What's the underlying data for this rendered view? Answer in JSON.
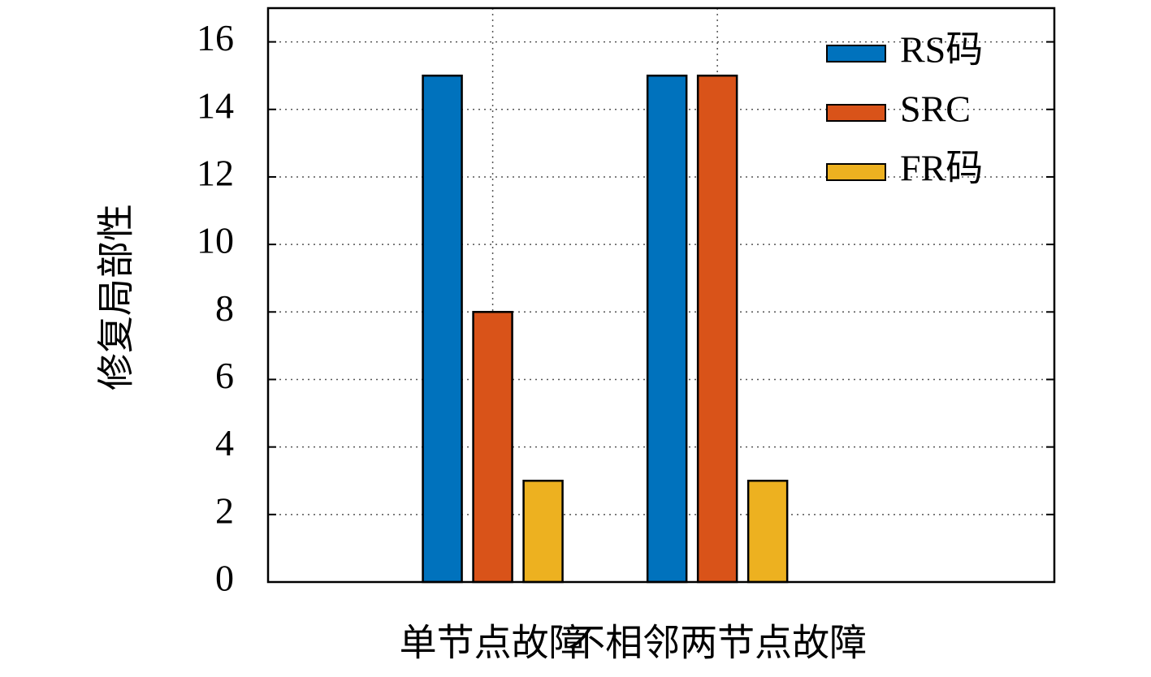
{
  "chart_data": {
    "type": "bar",
    "y_label": "修复局部性",
    "categories": [
      "单节点故障",
      "不相邻两节点故障"
    ],
    "series": [
      {
        "name": "RS码",
        "color": "#0072bd",
        "values": [
          15,
          15
        ]
      },
      {
        "name": "SRC",
        "color": "#d95319",
        "values": [
          8,
          15
        ]
      },
      {
        "name": "FR码",
        "color": "#edb120",
        "values": [
          3,
          3
        ]
      }
    ],
    "ylim": [
      0,
      17
    ],
    "yticks": [
      0,
      2,
      4,
      6,
      8,
      10,
      12,
      14,
      16
    ],
    "grid": true,
    "legend": "top-right"
  }
}
